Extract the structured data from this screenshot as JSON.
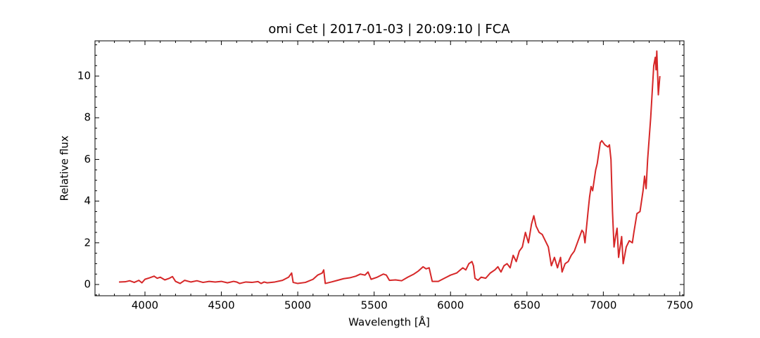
{
  "chart_data": {
    "type": "line",
    "title": "omi Cet | 2017-01-03 | 20:09:10 | FCA",
    "x_label": "Wavelength [Å]",
    "y_label": "Relative flux",
    "xlim": [
      3673,
      7528
    ],
    "ylim": [
      -0.54,
      11.69
    ],
    "xticks": [
      4000,
      4500,
      5000,
      5500,
      6000,
      6500,
      7000,
      7500
    ],
    "yticks": [
      0,
      2,
      4,
      6,
      8,
      10
    ],
    "x_minor_ticks": [
      3700,
      3800,
      3900,
      4100,
      4200,
      4300,
      4400,
      4600,
      4700,
      4800,
      4900,
      5100,
      5200,
      5300,
      5400,
      5600,
      5700,
      5800,
      5900,
      6100,
      6200,
      6300,
      6400,
      6600,
      6700,
      6800,
      6900,
      7100,
      7200,
      7300,
      7400
    ],
    "y_minor_ticks": [
      -0.5,
      0.5,
      1,
      1.5,
      2.5,
      3,
      3.5,
      4.5,
      5,
      5.5,
      6.5,
      7,
      7.5,
      8.5,
      9,
      9.5,
      10.5,
      11,
      11.5
    ],
    "series": [
      {
        "name": "omi Cet",
        "color": "#d62728",
        "x": [
          3830,
          3870,
          3900,
          3930,
          3960,
          3980,
          4000,
          4030,
          4060,
          4080,
          4100,
          4130,
          4160,
          4180,
          4200,
          4230,
          4260,
          4300,
          4340,
          4380,
          4420,
          4460,
          4500,
          4540,
          4580,
          4600,
          4620,
          4660,
          4700,
          4740,
          4760,
          4780,
          4800,
          4850,
          4900,
          4940,
          4960,
          4970,
          5000,
          5050,
          5100,
          5130,
          5160,
          5170,
          5180,
          5220,
          5260,
          5300,
          5340,
          5380,
          5410,
          5440,
          5460,
          5480,
          5520,
          5560,
          5580,
          5600,
          5640,
          5680,
          5720,
          5760,
          5790,
          5820,
          5840,
          5860,
          5880,
          5920,
          5960,
          6000,
          6040,
          6080,
          6100,
          6120,
          6140,
          6150,
          6160,
          6180,
          6200,
          6230,
          6260,
          6290,
          6310,
          6330,
          6350,
          6370,
          6390,
          6410,
          6430,
          6450,
          6470,
          6490,
          6510,
          6530,
          6545,
          6560,
          6580,
          6600,
          6620,
          6640,
          6660,
          6680,
          6700,
          6720,
          6730,
          6750,
          6770,
          6790,
          6810,
          6830,
          6850,
          6860,
          6870,
          6880,
          6900,
          6910,
          6920,
          6930,
          6950,
          6960,
          6980,
          6990,
          7010,
          7030,
          7040,
          7050,
          7060,
          7070,
          7080,
          7090,
          7100,
          7120,
          7130,
          7150,
          7170,
          7190,
          7200,
          7220,
          7240,
          7260,
          7270,
          7280,
          7290,
          7310,
          7330,
          7340,
          7345,
          7350,
          7360,
          7370
        ],
        "values": [
          0.12,
          0.13,
          0.18,
          0.1,
          0.2,
          0.08,
          0.25,
          0.32,
          0.4,
          0.3,
          0.35,
          0.22,
          0.3,
          0.38,
          0.15,
          0.05,
          0.2,
          0.12,
          0.18,
          0.1,
          0.15,
          0.12,
          0.15,
          0.08,
          0.15,
          0.12,
          0.05,
          0.12,
          0.1,
          0.14,
          0.05,
          0.12,
          0.08,
          0.12,
          0.2,
          0.35,
          0.55,
          0.1,
          0.05,
          0.1,
          0.25,
          0.45,
          0.55,
          0.7,
          0.05,
          0.12,
          0.2,
          0.28,
          0.32,
          0.4,
          0.5,
          0.45,
          0.6,
          0.25,
          0.35,
          0.5,
          0.45,
          0.2,
          0.22,
          0.18,
          0.35,
          0.5,
          0.65,
          0.85,
          0.75,
          0.8,
          0.15,
          0.15,
          0.3,
          0.45,
          0.55,
          0.8,
          0.7,
          1.0,
          1.1,
          0.9,
          0.3,
          0.2,
          0.35,
          0.3,
          0.55,
          0.7,
          0.85,
          0.6,
          0.9,
          1.0,
          0.8,
          1.4,
          1.1,
          1.6,
          1.8,
          2.5,
          2.0,
          2.9,
          3.3,
          2.8,
          2.5,
          2.4,
          2.1,
          1.8,
          0.9,
          1.3,
          0.8,
          1.3,
          0.6,
          1.0,
          1.1,
          1.4,
          1.6,
          2.0,
          2.4,
          2.6,
          2.5,
          2.0,
          3.5,
          4.2,
          4.7,
          4.5,
          5.5,
          5.8,
          6.8,
          6.9,
          6.7,
          6.6,
          6.7,
          6.0,
          3.5,
          1.8,
          2.3,
          2.7,
          1.3,
          2.3,
          1.0,
          1.8,
          2.1,
          2.0,
          2.5,
          3.4,
          3.5,
          4.5,
          5.2,
          4.6,
          6.0,
          8.0,
          10.5,
          10.9,
          10.3,
          11.2,
          9.1,
          10.0
        ]
      }
    ]
  }
}
